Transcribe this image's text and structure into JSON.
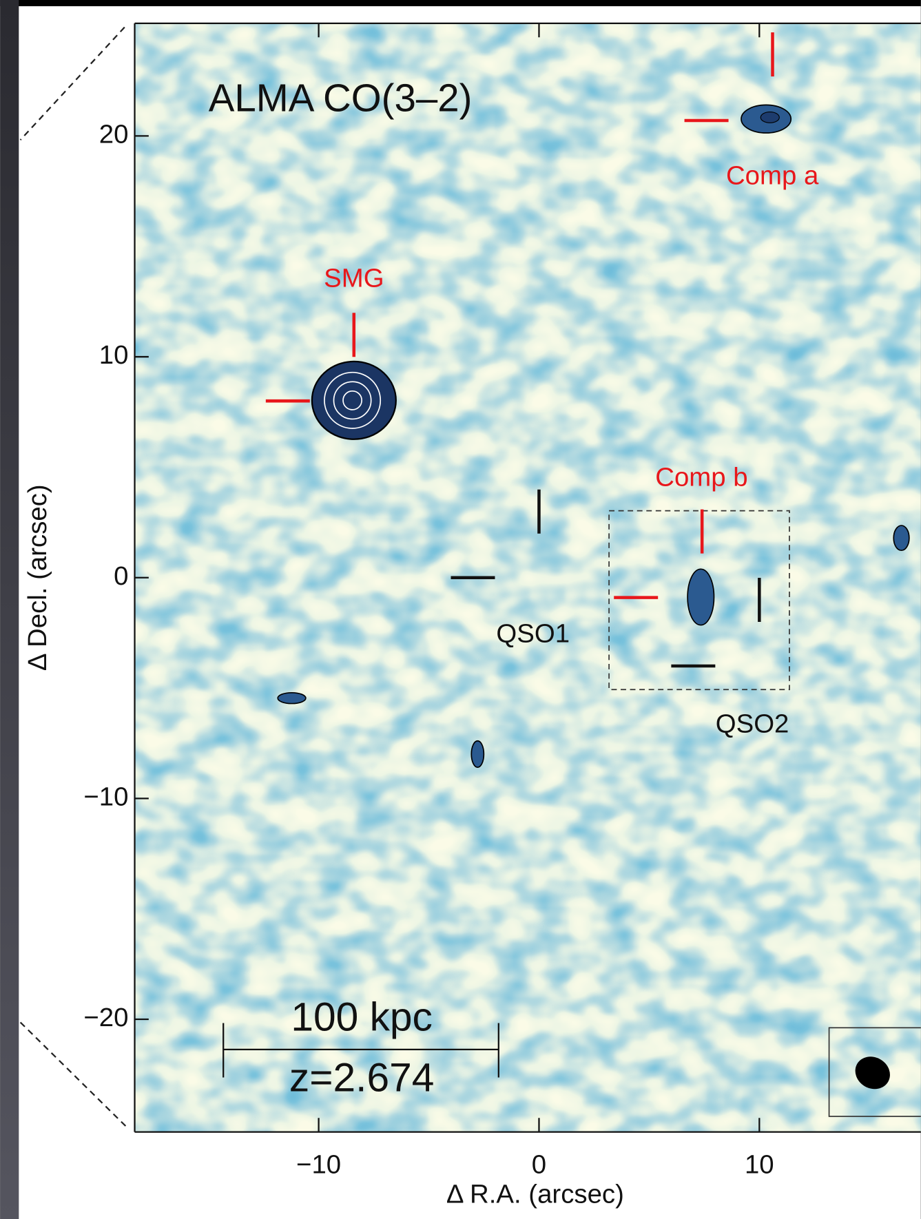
{
  "chart_data": {
    "type": "map",
    "title": "ALMA CO(3–2)",
    "x_label": "Δ R.A. (arcsec)",
    "y_label": "Δ Decl. (arcsec)",
    "xlim": [
      -18.35,
      17.4
    ],
    "ylim": [
      -25.1,
      25.1
    ],
    "xticks": [
      {
        "value": -10,
        "label": "−10"
      },
      0,
      10
    ],
    "yticks": [
      {
        "value": -20,
        "label": "−20"
      },
      {
        "value": -10,
        "label": "−10"
      },
      0,
      10,
      20
    ],
    "sources": [
      {
        "name": "SMG",
        "x": -8.4,
        "y": 8.0,
        "color": "#e8171b"
      },
      {
        "name": "Comp a",
        "x": 10.6,
        "y": 20.7,
        "color": "#e8171b"
      },
      {
        "name": "Comp b",
        "x": 7.4,
        "y": -0.9,
        "color": "#e8171b"
      },
      {
        "name": "QSO1",
        "x": 0,
        "y": 0,
        "color": "#111111"
      },
      {
        "name": "QSO2",
        "x": 10,
        "y": -4,
        "color": "#111111"
      }
    ],
    "scale_bar": "100 kpc",
    "redshift": "z=2.674"
  }
}
